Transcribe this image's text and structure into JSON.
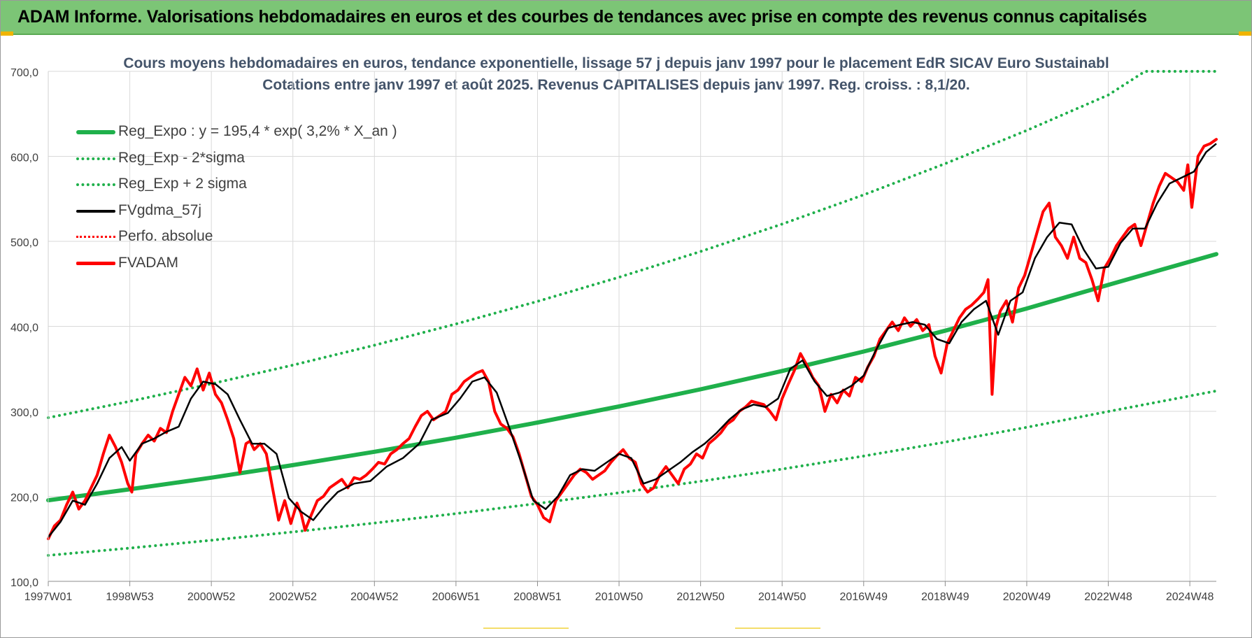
{
  "banner": {
    "title": "ADAM Informe. Valorisations hebdomadaires en euros et des courbes de tendances avec prise en compte des revenus connus capitalisés"
  },
  "colors": {
    "banner_bg": "#7cc576",
    "regression": "#1fb04b",
    "sigma_bands": "#1fb04b",
    "moving_average": "#000000",
    "price": "#ff0000",
    "perf_absolue": "#ff0000",
    "title_text": "#44546a",
    "axis_text": "#404040",
    "grid": "#d9d9d9"
  },
  "chart_data": {
    "type": "line",
    "title": "Cours moyens hebdomadaires en euros, tendance exponentielle, lissage 57 j depuis janv 1997  pour le placement EdR SICAV Euro Sustainabl",
    "subtitle": "Cotations entre janv 1997 et août 2025.  Revenus CAPITALISES depuis janv 1997. Reg.  croiss. : 8,1/20.",
    "xlabel": "",
    "ylabel": "",
    "ylim": [
      100,
      700
    ],
    "yticks": [
      "100,0",
      "200,0",
      "300,0",
      "400,0",
      "500,0",
      "600,0",
      "700,0"
    ],
    "xlim": [
      1997.0,
      2025.65
    ],
    "xticks": [
      {
        "label": "1997W01",
        "x": 1997.0
      },
      {
        "label": "1998W53",
        "x": 1999.0
      },
      {
        "label": "2000W52",
        "x": 2001.0
      },
      {
        "label": "2002W52",
        "x": 2003.0
      },
      {
        "label": "2004W52",
        "x": 2005.0
      },
      {
        "label": "2006W51",
        "x": 2007.0
      },
      {
        "label": "2008W51",
        "x": 2009.0
      },
      {
        "label": "2010W50",
        "x": 2011.0
      },
      {
        "label": "2012W50",
        "x": 2013.0
      },
      {
        "label": "2014W50",
        "x": 2015.0
      },
      {
        "label": "2016W49",
        "x": 2017.0
      },
      {
        "label": "2018W49",
        "x": 2019.0
      },
      {
        "label": "2020W49",
        "x": 2021.0
      },
      {
        "label": "2022W48",
        "x": 2023.0
      },
      {
        "label": "2024W48",
        "x": 2025.0
      }
    ],
    "grid": true,
    "legend_position": "top-left",
    "series": [
      {
        "name": "Reg_Expo : y = 195,4 * exp( 3,2% *  X_an )",
        "style": "solid-thick",
        "color": "#1fb04b",
        "x": [
          1997.0,
          1999.0,
          2001.0,
          2003.0,
          2005.0,
          2007.0,
          2009.0,
          2011.0,
          2013.0,
          2015.0,
          2017.0,
          2019.0,
          2021.0,
          2023.0,
          2025.65
        ],
        "y": [
          195.4,
          208.3,
          222.0,
          236.7,
          252.4,
          269.0,
          286.8,
          305.8,
          325.9,
          347.5,
          370.4,
          394.9,
          421.0,
          448.8,
          485.0
        ]
      },
      {
        "name": "Reg_Exp - 2*sigma",
        "style": "dotted",
        "color": "#1fb04b",
        "x": [
          1997.0,
          1999.0,
          2001.0,
          2003.0,
          2005.0,
          2007.0,
          2009.0,
          2011.0,
          2013.0,
          2015.0,
          2017.0,
          2019.0,
          2021.0,
          2023.0,
          2025.65
        ],
        "y": [
          130.5,
          139.1,
          148.3,
          158.1,
          168.6,
          179.7,
          191.6,
          204.2,
          217.7,
          232.1,
          247.4,
          263.8,
          281.2,
          299.8,
          324.0
        ]
      },
      {
        "name": "Reg_Exp + 2 sigma",
        "style": "dotted",
        "color": "#1fb04b",
        "x": [
          1997.0,
          1999.0,
          2001.0,
          2003.0,
          2005.0,
          2007.0,
          2009.0,
          2011.0,
          2013.0,
          2015.0,
          2017.0,
          2019.0,
          2021.0,
          2023.0,
          2023.9,
          2025.65
        ],
        "y": [
          292.5,
          311.8,
          332.4,
          354.4,
          377.8,
          402.8,
          429.4,
          457.8,
          488.1,
          520.3,
          554.7,
          591.4,
          630.5,
          672.2,
          700.0,
          700.0
        ]
      },
      {
        "name": "FVgdma_57j",
        "style": "solid",
        "color": "#000000",
        "x": [
          1997.0,
          1997.3,
          1997.6,
          1997.9,
          1998.2,
          1998.5,
          1998.8,
          1999.0,
          1999.3,
          1999.6,
          1999.9,
          2000.2,
          2000.5,
          2000.8,
          2001.1,
          2001.4,
          2001.7,
          2002.0,
          2002.3,
          2002.6,
          2002.9,
          2003.2,
          2003.5,
          2003.8,
          2004.1,
          2004.5,
          2004.9,
          2005.3,
          2005.7,
          2006.1,
          2006.4,
          2006.8,
          2007.1,
          2007.4,
          2007.7,
          2008.0,
          2008.3,
          2008.6,
          2008.9,
          2009.2,
          2009.5,
          2009.8,
          2010.1,
          2010.4,
          2010.7,
          2011.0,
          2011.3,
          2011.6,
          2011.9,
          2012.2,
          2012.5,
          2012.8,
          2013.1,
          2013.4,
          2013.7,
          2014.0,
          2014.3,
          2014.6,
          2014.9,
          2015.2,
          2015.5,
          2015.8,
          2016.1,
          2016.4,
          2016.7,
          2017.0,
          2017.3,
          2017.6,
          2017.9,
          2018.2,
          2018.5,
          2018.8,
          2019.1,
          2019.4,
          2019.7,
          2020.0,
          2020.3,
          2020.6,
          2020.9,
          2021.2,
          2021.5,
          2021.8,
          2022.1,
          2022.4,
          2022.7,
          2023.0,
          2023.3,
          2023.6,
          2023.9,
          2024.2,
          2024.5,
          2024.8,
          2025.1,
          2025.4,
          2025.65
        ],
        "y": [
          152,
          170,
          195,
          190,
          215,
          245,
          258,
          242,
          262,
          268,
          276,
          282,
          315,
          335,
          332,
          320,
          290,
          262,
          262,
          250,
          198,
          182,
          172,
          190,
          205,
          215,
          218,
          235,
          245,
          262,
          290,
          298,
          315,
          335,
          340,
          322,
          282,
          240,
          195,
          185,
          200,
          225,
          232,
          230,
          240,
          250,
          245,
          215,
          220,
          230,
          240,
          252,
          262,
          275,
          290,
          302,
          308,
          305,
          315,
          350,
          360,
          335,
          318,
          322,
          330,
          342,
          372,
          398,
          402,
          405,
          402,
          385,
          380,
          405,
          420,
          430,
          390,
          430,
          440,
          480,
          505,
          522,
          520,
          490,
          468,
          470,
          498,
          515,
          515,
          545,
          568,
          575,
          582,
          605,
          615
        ]
      },
      {
        "name": "Perfo. absolue",
        "style": "dotted",
        "color": "#ff0000",
        "x": [],
        "y": []
      },
      {
        "name": "FVADAM",
        "style": "solid-thick",
        "color": "#ff0000",
        "x": [
          1997.0,
          1997.15,
          1997.3,
          1997.45,
          1997.6,
          1997.75,
          1997.9,
          1998.05,
          1998.2,
          1998.35,
          1998.5,
          1998.65,
          1998.8,
          1998.95,
          1999.05,
          1999.15,
          1999.3,
          1999.45,
          1999.6,
          1999.75,
          1999.9,
          2000.05,
          2000.2,
          2000.35,
          2000.5,
          2000.65,
          2000.8,
          2000.95,
          2001.1,
          2001.25,
          2001.4,
          2001.55,
          2001.7,
          2001.85,
          2001.95,
          2002.05,
          2002.2,
          2002.35,
          2002.5,
          2002.65,
          2002.8,
          2002.95,
          2003.1,
          2003.2,
          2003.3,
          2003.45,
          2003.6,
          2003.75,
          2003.9,
          2004.05,
          2004.2,
          2004.35,
          2004.5,
          2004.65,
          2004.8,
          2004.95,
          2005.1,
          2005.25,
          2005.4,
          2005.55,
          2005.7,
          2005.85,
          2006.0,
          2006.15,
          2006.3,
          2006.45,
          2006.6,
          2006.75,
          2006.9,
          2007.05,
          2007.2,
          2007.35,
          2007.5,
          2007.65,
          2007.8,
          2007.95,
          2008.1,
          2008.25,
          2008.4,
          2008.55,
          2008.7,
          2008.85,
          2009.0,
          2009.15,
          2009.3,
          2009.45,
          2009.6,
          2009.75,
          2009.9,
          2010.05,
          2010.2,
          2010.35,
          2010.5,
          2010.65,
          2010.8,
          2010.95,
          2011.1,
          2011.25,
          2011.4,
          2011.55,
          2011.7,
          2011.85,
          2012.0,
          2012.15,
          2012.3,
          2012.45,
          2012.6,
          2012.75,
          2012.9,
          2013.05,
          2013.2,
          2013.35,
          2013.5,
          2013.65,
          2013.8,
          2013.95,
          2014.1,
          2014.25,
          2014.4,
          2014.55,
          2014.7,
          2014.85,
          2015.0,
          2015.15,
          2015.3,
          2015.45,
          2015.6,
          2015.75,
          2015.9,
          2016.05,
          2016.2,
          2016.35,
          2016.5,
          2016.65,
          2016.8,
          2016.95,
          2017.1,
          2017.25,
          2017.4,
          2017.55,
          2017.7,
          2017.85,
          2018.0,
          2018.15,
          2018.3,
          2018.45,
          2018.6,
          2018.75,
          2018.9,
          2019.05,
          2019.2,
          2019.35,
          2019.5,
          2019.65,
          2019.8,
          2019.95,
          2020.05,
          2020.15,
          2020.25,
          2020.35,
          2020.5,
          2020.65,
          2020.8,
          2020.95,
          2021.1,
          2021.25,
          2021.4,
          2021.55,
          2021.7,
          2021.85,
          2022.0,
          2022.15,
          2022.3,
          2022.45,
          2022.6,
          2022.75,
          2022.9,
          2023.05,
          2023.2,
          2023.35,
          2023.5,
          2023.65,
          2023.8,
          2023.95,
          2024.1,
          2024.25,
          2024.4,
          2024.55,
          2024.7,
          2024.85,
          2024.95,
          2025.05,
          2025.2,
          2025.35,
          2025.5,
          2025.65
        ],
        "y": [
          150,
          165,
          172,
          190,
          205,
          185,
          195,
          210,
          225,
          250,
          272,
          258,
          240,
          215,
          205,
          250,
          262,
          272,
          265,
          280,
          275,
          300,
          320,
          340,
          330,
          350,
          325,
          345,
          320,
          310,
          290,
          268,
          228,
          262,
          265,
          255,
          262,
          250,
          210,
          172,
          195,
          168,
          192,
          180,
          160,
          178,
          195,
          200,
          210,
          215,
          220,
          210,
          222,
          220,
          225,
          232,
          240,
          238,
          250,
          255,
          262,
          268,
          282,
          295,
          300,
          290,
          295,
          300,
          320,
          325,
          335,
          340,
          345,
          348,
          335,
          300,
          285,
          280,
          270,
          250,
          225,
          200,
          190,
          175,
          170,
          195,
          205,
          215,
          225,
          232,
          228,
          220,
          225,
          230,
          240,
          248,
          255,
          245,
          240,
          215,
          205,
          210,
          225,
          235,
          225,
          215,
          232,
          238,
          250,
          245,
          262,
          268,
          275,
          285,
          290,
          300,
          305,
          312,
          310,
          308,
          300,
          290,
          315,
          332,
          348,
          368,
          355,
          340,
          330,
          300,
          320,
          310,
          325,
          318,
          340,
          335,
          352,
          365,
          385,
          395,
          405,
          395,
          410,
          400,
          408,
          395,
          402,
          365,
          345,
          380,
          395,
          410,
          420,
          425,
          432,
          440,
          455,
          320,
          400,
          418,
          430,
          405,
          445,
          460,
          485,
          510,
          535,
          545,
          505,
          495,
          480,
          505,
          480,
          475,
          455,
          430,
          468,
          480,
          495,
          505,
          515,
          520,
          495,
          520,
          545,
          565,
          580,
          575,
          570,
          560,
          590,
          540,
          600,
          612,
          615,
          620
        ]
      }
    ]
  }
}
